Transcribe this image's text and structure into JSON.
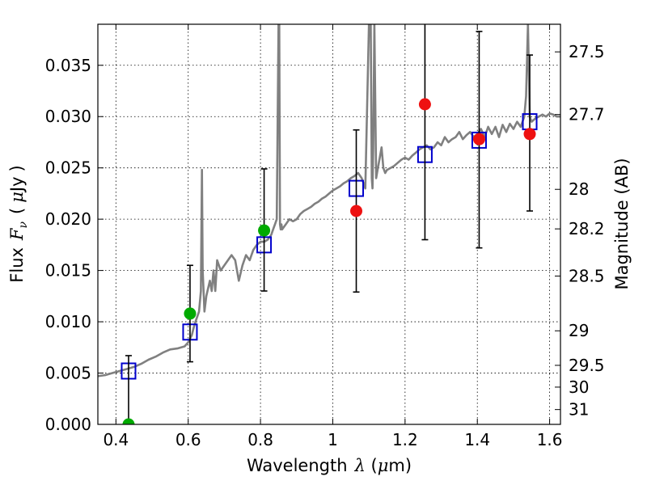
{
  "chart_data": {
    "type": "scatter",
    "title": "",
    "xlabel": {
      "text": "Wavelength",
      "symbol": "λ",
      "unit_open": " (",
      "unit_mu": "μ",
      "unit_rest": "m)"
    },
    "ylabel": {
      "text": "Flux",
      "symbol": "F",
      "subscript": "ν",
      "unit_open": "(",
      "unit_mu": "μ",
      "unit_rest": "Jy",
      "unit_close": ")"
    },
    "y2label": "Magnitude (AB)",
    "xlim": [
      0.35,
      1.63
    ],
    "ylim": [
      0.0,
      0.039
    ],
    "grid": true,
    "x_ticks": [
      {
        "v": 0.4,
        "label": "0.4"
      },
      {
        "v": 0.6,
        "label": "0.6"
      },
      {
        "v": 0.8,
        "label": "0.8"
      },
      {
        "v": 1.0,
        "label": "1"
      },
      {
        "v": 1.2,
        "label": "1.2"
      },
      {
        "v": 1.4,
        "label": "1.4"
      },
      {
        "v": 1.6,
        "label": "1.6"
      }
    ],
    "y_ticks": [
      {
        "v": 0.0,
        "label": "0.000"
      },
      {
        "v": 0.005,
        "label": "0.005"
      },
      {
        "v": 0.01,
        "label": "0.010"
      },
      {
        "v": 0.015,
        "label": "0.015"
      },
      {
        "v": 0.02,
        "label": "0.020"
      },
      {
        "v": 0.025,
        "label": "0.025"
      },
      {
        "v": 0.03,
        "label": "0.030"
      },
      {
        "v": 0.035,
        "label": "0.035"
      }
    ],
    "y2_ticks": [
      {
        "v": 27.5,
        "label": "27.5"
      },
      {
        "v": 27.7,
        "label": "27.7"
      },
      {
        "v": 28.0,
        "label": "28"
      },
      {
        "v": 28.2,
        "label": "28.2"
      },
      {
        "v": 28.5,
        "label": "28.5"
      },
      {
        "v": 29.0,
        "label": "29"
      },
      {
        "v": 29.5,
        "label": "29.5"
      },
      {
        "v": 30.0,
        "label": "30"
      },
      {
        "v": 31.0,
        "label": "31"
      }
    ],
    "series": [
      {
        "kind": "model",
        "color": "#808080",
        "x": [
          0.35,
          0.37,
          0.39,
          0.41,
          0.43,
          0.45,
          0.47,
          0.49,
          0.51,
          0.53,
          0.55,
          0.57,
          0.59,
          0.6,
          0.61,
          0.615,
          0.62,
          0.63,
          0.635,
          0.638,
          0.64,
          0.645,
          0.65,
          0.66,
          0.665,
          0.67,
          0.675,
          0.68,
          0.69,
          0.7,
          0.71,
          0.72,
          0.73,
          0.74,
          0.75,
          0.76,
          0.77,
          0.78,
          0.79,
          0.8,
          0.81,
          0.82,
          0.83,
          0.835,
          0.84,
          0.845,
          0.85,
          0.852,
          0.854,
          0.856,
          0.858,
          0.86,
          0.87,
          0.88,
          0.89,
          0.9,
          0.91,
          0.92,
          0.93,
          0.94,
          0.95,
          0.96,
          0.97,
          0.98,
          0.99,
          1.0,
          1.01,
          1.02,
          1.03,
          1.04,
          1.05,
          1.06,
          1.07,
          1.08,
          1.09,
          1.1,
          1.105,
          1.108,
          1.11,
          1.112,
          1.115,
          1.12,
          1.125,
          1.13,
          1.135,
          1.14,
          1.145,
          1.15,
          1.16,
          1.17,
          1.18,
          1.19,
          1.2,
          1.21,
          1.22,
          1.23,
          1.24,
          1.25,
          1.26,
          1.27,
          1.28,
          1.29,
          1.3,
          1.31,
          1.32,
          1.33,
          1.34,
          1.35,
          1.36,
          1.37,
          1.38,
          1.39,
          1.4,
          1.41,
          1.42,
          1.43,
          1.44,
          1.45,
          1.46,
          1.47,
          1.48,
          1.49,
          1.5,
          1.51,
          1.52,
          1.53,
          1.535,
          1.54,
          1.545,
          1.55,
          1.56,
          1.57,
          1.58,
          1.59,
          1.6,
          1.61,
          1.62,
          1.63
        ],
        "y": [
          0.0047,
          0.0048,
          0.005,
          0.0052,
          0.0054,
          0.0056,
          0.0059,
          0.0063,
          0.0066,
          0.007,
          0.0073,
          0.0074,
          0.0076,
          0.008,
          0.0087,
          0.0094,
          0.01,
          0.011,
          0.013,
          0.0248,
          0.015,
          0.011,
          0.0125,
          0.014,
          0.013,
          0.015,
          0.013,
          0.016,
          0.015,
          0.0155,
          0.016,
          0.0165,
          0.016,
          0.014,
          0.0155,
          0.0165,
          0.016,
          0.017,
          0.0175,
          0.0178,
          0.0178,
          0.018,
          0.0185,
          0.019,
          0.0195,
          0.02,
          0.039,
          0.039,
          0.0195,
          0.019,
          0.0195,
          0.019,
          0.0195,
          0.02,
          0.0198,
          0.02,
          0.0205,
          0.0208,
          0.021,
          0.0212,
          0.0215,
          0.0217,
          0.022,
          0.0222,
          0.0225,
          0.0228,
          0.023,
          0.0232,
          0.0235,
          0.0237,
          0.024,
          0.0242,
          0.0245,
          0.024,
          0.023,
          0.039,
          0.039,
          0.024,
          0.023,
          0.027,
          0.039,
          0.024,
          0.025,
          0.026,
          0.027,
          0.025,
          0.0245,
          0.0248,
          0.025,
          0.0252,
          0.0255,
          0.0258,
          0.026,
          0.0258,
          0.0262,
          0.0265,
          0.0268,
          0.027,
          0.0272,
          0.0268,
          0.027,
          0.0275,
          0.0272,
          0.028,
          0.0275,
          0.0278,
          0.028,
          0.0285,
          0.0278,
          0.0282,
          0.0285,
          0.028,
          0.0283,
          0.0288,
          0.028,
          0.029,
          0.0283,
          0.029,
          0.028,
          0.0292,
          0.0285,
          0.0293,
          0.0288,
          0.0295,
          0.029,
          0.03,
          0.032,
          0.039,
          0.03,
          0.0295,
          0.0298,
          0.03,
          0.0302,
          0.03,
          0.0303,
          0.0302,
          0.03,
          0.03
        ]
      },
      {
        "kind": "model-photometry",
        "marker": "open-square",
        "color": "#0000cc",
        "x": [
          0.435,
          0.605,
          0.81,
          1.065,
          1.255,
          1.405,
          1.545
        ],
        "y": [
          0.0052,
          0.009,
          0.0175,
          0.023,
          0.0263,
          0.0277,
          0.0295
        ]
      },
      {
        "kind": "detections",
        "marker": "filled-circle",
        "color": "#00aa00",
        "x": [
          0.435,
          0.605,
          0.81
        ],
        "y": [
          0.0,
          0.0108,
          0.0189
        ]
      },
      {
        "kind": "limits",
        "marker": "filled-circle",
        "color": "#ee1111",
        "x": [
          1.065,
          1.255,
          1.405,
          1.545
        ],
        "y": [
          0.0208,
          0.0312,
          0.0278,
          0.0283
        ]
      }
    ],
    "errorbars": {
      "color": "#000000",
      "x": [
        0.435,
        0.605,
        0.81,
        1.065,
        1.255,
        1.405,
        1.545
      ],
      "y_low": [
        0.0,
        0.0061,
        0.013,
        0.0129,
        0.018,
        0.0172,
        0.0208
      ],
      "y_high": [
        0.0067,
        0.0155,
        0.0249,
        0.0287,
        0.04,
        0.0383,
        0.036
      ]
    }
  }
}
